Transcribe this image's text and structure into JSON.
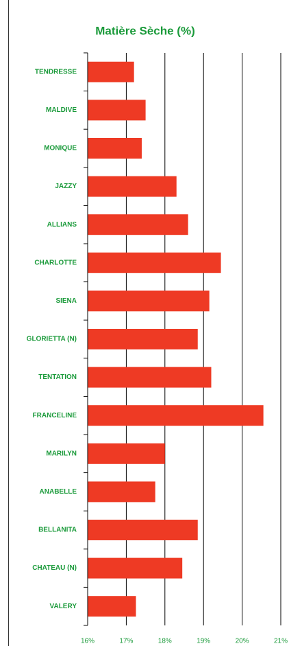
{
  "chart_data": {
    "type": "bar",
    "orientation": "horizontal",
    "title": "Matière Sèche (%)",
    "categories": [
      "TENDRESSE",
      "MALDIVE",
      "MONIQUE",
      "JAZZY",
      "ALLIANS",
      "CHARLOTTE",
      "SIENA",
      "GLORIETTA (N)",
      "TENTATION",
      "FRANCELINE",
      "MARILYN",
      "ANABELLE",
      "BELLANITA",
      "CHATEAU (N)",
      "VALERY"
    ],
    "values": [
      17.2,
      17.5,
      17.4,
      18.3,
      18.6,
      19.45,
      19.15,
      18.85,
      19.2,
      20.55,
      18.0,
      17.75,
      18.85,
      18.45,
      17.25
    ],
    "color": "#ee3a24",
    "xlim": [
      16,
      21
    ],
    "xticks": [
      {
        "value": 16,
        "label": "16%"
      },
      {
        "value": 17,
        "label": "17%"
      },
      {
        "value": 18,
        "label": "18%"
      },
      {
        "value": 19,
        "label": "19%"
      },
      {
        "value": 20,
        "label": "20%"
      },
      {
        "value": 21,
        "label": "21%"
      }
    ],
    "grid": true
  }
}
